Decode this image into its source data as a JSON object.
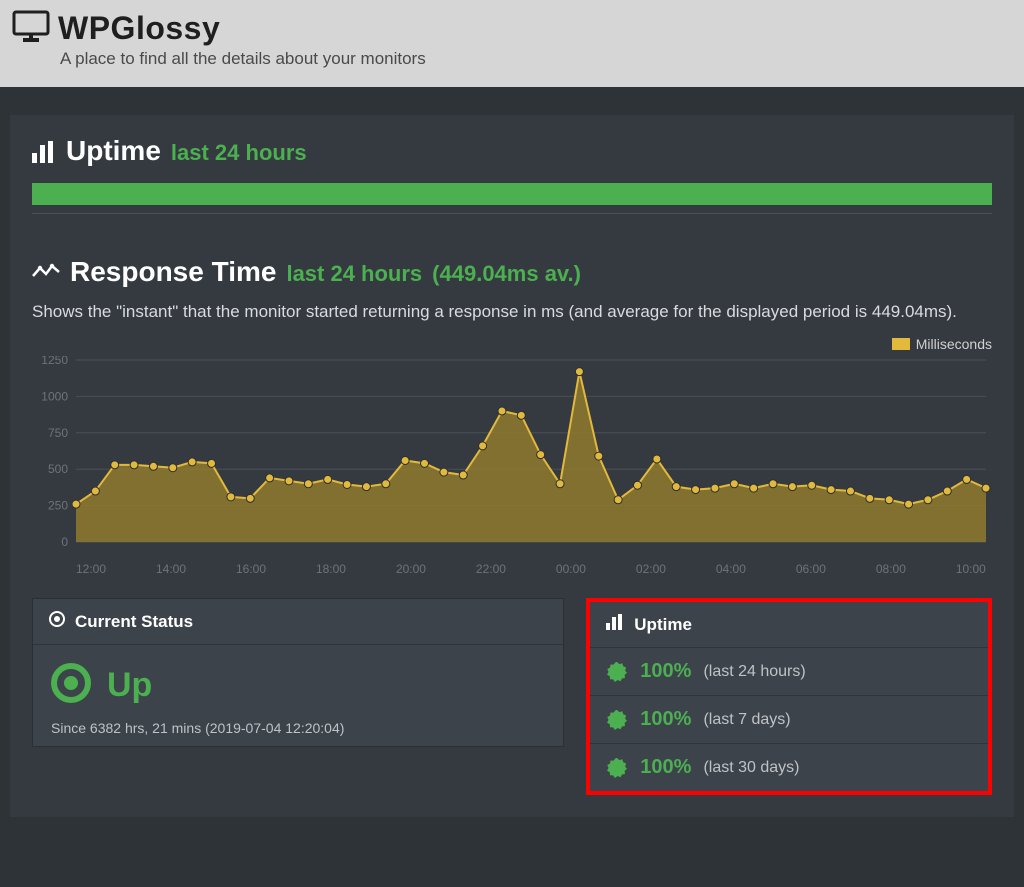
{
  "header": {
    "brand": "WPGlossy",
    "tagline": "A place to find all the details about your monitors",
    "bg_color": "#d6d6d6",
    "title_color": "#1f1f1f"
  },
  "uptime_section": {
    "title": "Uptime",
    "subtitle": "last 24 hours",
    "bar_color": "#4caf50"
  },
  "response_section": {
    "title": "Response Time",
    "subtitle": "last 24 hours",
    "avg_label": "(449.04ms av.)",
    "description": "Shows the \"instant\" that the monitor started returning a response in ms (and average for the displayed period is 449.04ms).",
    "legend_label": "Milliseconds",
    "legend_color": "#e3b93b"
  },
  "chart": {
    "type": "area",
    "line_color": "#e3b93b",
    "fill_color": "#8f7a2e",
    "fill_opacity": 0.85,
    "marker_color": "#e3b93b",
    "marker_size": 4,
    "line_width": 2,
    "background": "#343a40",
    "grid_color": "#4a5056",
    "ylim": [
      0,
      1250
    ],
    "ytick_step": 250,
    "y_ticks": [
      0,
      250,
      500,
      750,
      1000,
      1250
    ],
    "x_labels": [
      "12:00",
      "14:00",
      "16:00",
      "18:00",
      "20:00",
      "22:00",
      "00:00",
      "02:00",
      "04:00",
      "06:00",
      "08:00",
      "10:00"
    ],
    "label_color": "#6f7379",
    "label_fontsize": 12,
    "values": [
      260,
      350,
      530,
      530,
      520,
      510,
      550,
      540,
      310,
      300,
      440,
      420,
      400,
      430,
      395,
      380,
      400,
      560,
      540,
      480,
      460,
      660,
      900,
      870,
      600,
      400,
      1170,
      590,
      290,
      390,
      570,
      380,
      360,
      370,
      400,
      370,
      400,
      380,
      390,
      360,
      350,
      300,
      290,
      260,
      290,
      350,
      430,
      370
    ]
  },
  "status_card": {
    "header": "Current Status",
    "status": "Up",
    "status_color": "#4caf50",
    "since": "Since 6382 hrs, 21 mins (2019-07-04 12:20:04)"
  },
  "uptime_card": {
    "header": "Uptime",
    "highlight_border": "#ff0000",
    "rows": [
      {
        "pct": "100%",
        "period": "(last 24 hours)"
      },
      {
        "pct": "100%",
        "period": "(last 7 days)"
      },
      {
        "pct": "100%",
        "period": "(last 30 days)"
      }
    ],
    "pct_color": "#4caf50",
    "badge_color": "#4caf50"
  }
}
